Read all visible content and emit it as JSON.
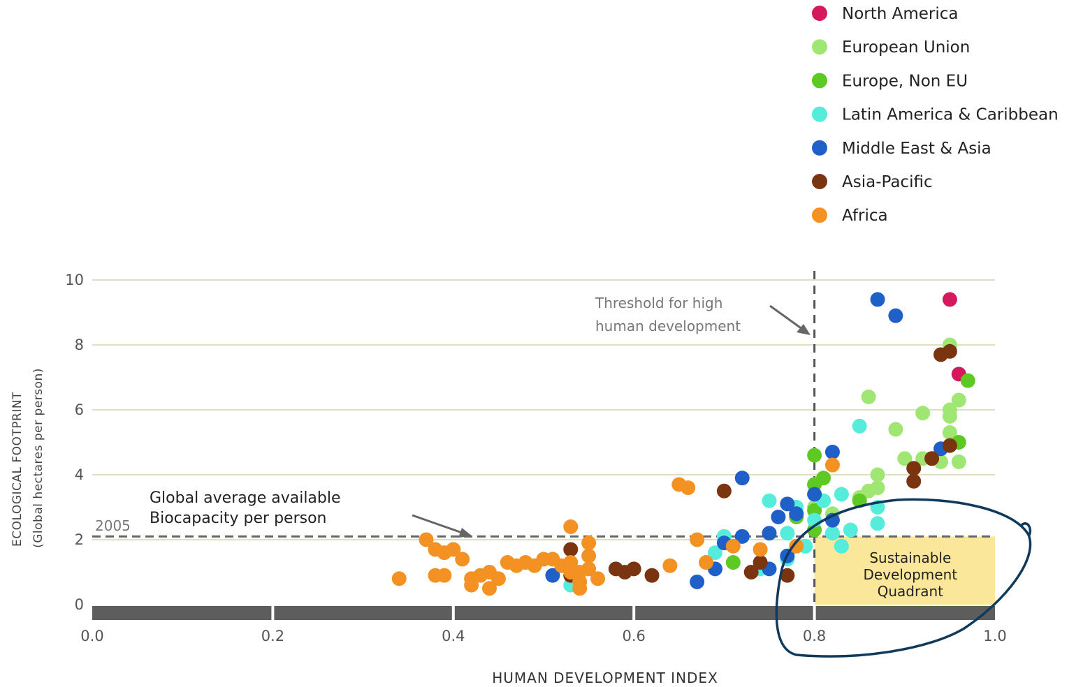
{
  "chart_data": {
    "type": "scatter",
    "xlabel": "HUMAN DEVELOPMENT INDEX",
    "ylabel": "ECOLOGICAL FOOTPRINT",
    "ylabel_sub": "(Global hectares per person)",
    "xlim": [
      0.0,
      1.0
    ],
    "ylim": [
      0,
      10
    ],
    "x_ticks": [
      "0.0",
      "0.2",
      "0.4",
      "0.6",
      "0.8",
      "1.0"
    ],
    "y_ticks": [
      "0",
      "2",
      "4",
      "6",
      "8",
      "10"
    ],
    "grid": "horizontal",
    "legend_position": "top-right",
    "annotations": {
      "threshold_line1": "Threshold for high",
      "threshold_line2": "human development",
      "threshold_x": 0.8,
      "biocap_line1": "Global average available",
      "biocap_line2": "Biocapacity per person",
      "biocap_year": "2005",
      "biocap_y": 2.1,
      "quadrant_line1": "Sustainable",
      "quadrant_line2": "Development",
      "quadrant_line3": "Quadrant"
    },
    "series": [
      {
        "name": "North America",
        "color": "#d6185e",
        "points": [
          [
            0.95,
            9.4
          ],
          [
            0.96,
            7.1
          ]
        ]
      },
      {
        "name": "European Union",
        "color": "#9fe673",
        "points": [
          [
            0.95,
            8.0
          ],
          [
            0.95,
            6.0
          ],
          [
            0.96,
            6.3
          ],
          [
            0.86,
            6.4
          ],
          [
            0.92,
            5.9
          ],
          [
            0.95,
            5.8
          ],
          [
            0.95,
            5.3
          ],
          [
            0.89,
            5.4
          ],
          [
            0.96,
            4.4
          ],
          [
            0.9,
            4.5
          ],
          [
            0.92,
            4.5
          ],
          [
            0.94,
            4.4
          ],
          [
            0.87,
            4.0
          ],
          [
            0.87,
            3.6
          ],
          [
            0.86,
            3.5
          ],
          [
            0.8,
            3.0
          ],
          [
            0.82,
            2.8
          ],
          [
            0.85,
            3.3
          ]
        ]
      },
      {
        "name": "Europe, Non EU",
        "color": "#5fc924",
        "points": [
          [
            0.97,
            6.9
          ],
          [
            0.96,
            5.0
          ],
          [
            0.8,
            4.6
          ],
          [
            0.8,
            3.7
          ],
          [
            0.81,
            3.9
          ],
          [
            0.78,
            2.7
          ],
          [
            0.8,
            2.3
          ],
          [
            0.8,
            2.9
          ],
          [
            0.85,
            3.2
          ],
          [
            0.71,
            1.3
          ]
        ]
      },
      {
        "name": "Latin America & Caribbean",
        "color": "#55ecdc",
        "points": [
          [
            0.85,
            5.5
          ],
          [
            0.83,
            3.4
          ],
          [
            0.81,
            3.2
          ],
          [
            0.75,
            3.2
          ],
          [
            0.78,
            3.0
          ],
          [
            0.8,
            2.6
          ],
          [
            0.87,
            3.0
          ],
          [
            0.87,
            2.5
          ],
          [
            0.77,
            2.2
          ],
          [
            0.82,
            2.2
          ],
          [
            0.84,
            2.3
          ],
          [
            0.7,
            2.1
          ],
          [
            0.72,
            2.1
          ],
          [
            0.69,
            1.6
          ],
          [
            0.77,
            1.4
          ],
          [
            0.79,
            1.8
          ],
          [
            0.83,
            1.8
          ],
          [
            0.74,
            1.1
          ],
          [
            0.53,
            0.6
          ]
        ]
      },
      {
        "name": "Middle East & Asia",
        "color": "#1f5fc8",
        "points": [
          [
            0.87,
            9.4
          ],
          [
            0.89,
            8.9
          ],
          [
            0.82,
            4.7
          ],
          [
            0.94,
            4.8
          ],
          [
            0.72,
            3.9
          ],
          [
            0.8,
            3.4
          ],
          [
            0.77,
            3.1
          ],
          [
            0.76,
            2.7
          ],
          [
            0.78,
            2.8
          ],
          [
            0.82,
            2.6
          ],
          [
            0.7,
            1.9
          ],
          [
            0.72,
            2.1
          ],
          [
            0.75,
            2.2
          ],
          [
            0.69,
            1.1
          ],
          [
            0.75,
            1.1
          ],
          [
            0.77,
            1.5
          ],
          [
            0.67,
            0.7
          ],
          [
            0.51,
            0.9
          ]
        ]
      },
      {
        "name": "Asia-Pacific",
        "color": "#7b3410",
        "points": [
          [
            0.95,
            7.8
          ],
          [
            0.94,
            7.7
          ],
          [
            0.91,
            4.2
          ],
          [
            0.93,
            4.5
          ],
          [
            0.91,
            3.8
          ],
          [
            0.95,
            4.9
          ],
          [
            0.7,
            3.5
          ],
          [
            0.53,
            1.7
          ],
          [
            0.58,
            1.1
          ],
          [
            0.59,
            1.0
          ],
          [
            0.6,
            1.1
          ],
          [
            0.62,
            0.9
          ],
          [
            0.73,
            1.0
          ],
          [
            0.74,
            1.3
          ],
          [
            0.77,
            0.9
          ],
          [
            0.53,
            0.9
          ]
        ]
      },
      {
        "name": "Africa",
        "color": "#f39123",
        "points": [
          [
            0.65,
            3.7
          ],
          [
            0.66,
            3.6
          ],
          [
            0.82,
            4.3
          ],
          [
            0.53,
            2.4
          ],
          [
            0.55,
            1.9
          ],
          [
            0.37,
            2.0
          ],
          [
            0.38,
            1.7
          ],
          [
            0.39,
            1.6
          ],
          [
            0.4,
            1.7
          ],
          [
            0.41,
            1.4
          ],
          [
            0.38,
            0.9
          ],
          [
            0.39,
            0.9
          ],
          [
            0.42,
            0.8
          ],
          [
            0.42,
            0.6
          ],
          [
            0.43,
            0.9
          ],
          [
            0.44,
            1.0
          ],
          [
            0.44,
            0.5
          ],
          [
            0.45,
            0.8
          ],
          [
            0.46,
            1.3
          ],
          [
            0.47,
            1.2
          ],
          [
            0.48,
            1.3
          ],
          [
            0.49,
            1.2
          ],
          [
            0.5,
            1.4
          ],
          [
            0.51,
            1.4
          ],
          [
            0.52,
            1.2
          ],
          [
            0.53,
            1.0
          ],
          [
            0.53,
            1.3
          ],
          [
            0.54,
            1.0
          ],
          [
            0.54,
            0.7
          ],
          [
            0.55,
            1.5
          ],
          [
            0.55,
            1.1
          ],
          [
            0.34,
            0.8
          ],
          [
            0.56,
            0.8
          ],
          [
            0.64,
            1.2
          ],
          [
            0.67,
            2.0
          ],
          [
            0.68,
            1.3
          ],
          [
            0.71,
            1.8
          ],
          [
            0.74,
            1.7
          ],
          [
            0.78,
            1.8
          ],
          [
            0.54,
            0.5
          ]
        ]
      }
    ]
  }
}
